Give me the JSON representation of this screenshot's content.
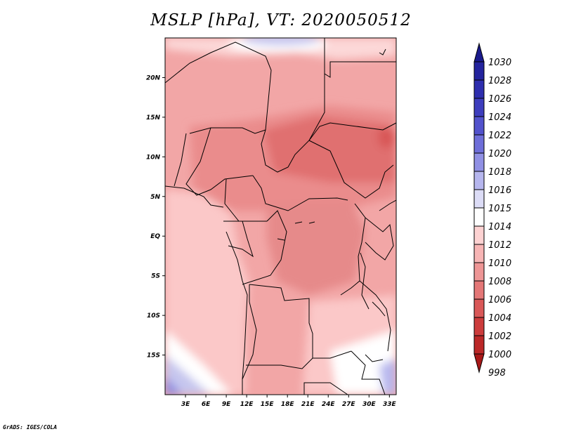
{
  "title": "MSLP [hPa], VT: 2020050512",
  "credit": "GrADS: IGES/COLA",
  "map": {
    "variable": "MSLP",
    "units": "hPa",
    "valid_time": "2020050512",
    "lon_range": [
      0,
      34
    ],
    "lat_range": [
      -20,
      25
    ],
    "x_ticks": [
      {
        "label": "3E",
        "lon": 3
      },
      {
        "label": "6E",
        "lon": 6
      },
      {
        "label": "9E",
        "lon": 9
      },
      {
        "label": "12E",
        "lon": 12
      },
      {
        "label": "15E",
        "lon": 15
      },
      {
        "label": "18E",
        "lon": 18
      },
      {
        "label": "21E",
        "lon": 21
      },
      {
        "label": "24E",
        "lon": 24
      },
      {
        "label": "27E",
        "lon": 27
      },
      {
        "label": "30E",
        "lon": 30
      },
      {
        "label": "33E",
        "lon": 33
      }
    ],
    "y_ticks": [
      {
        "label": "20N",
        "lat": 20
      },
      {
        "label": "15N",
        "lat": 15
      },
      {
        "label": "10N",
        "lat": 10
      },
      {
        "label": "5N",
        "lat": 5
      },
      {
        "label": "EQ",
        "lat": 0
      },
      {
        "label": "5S",
        "lat": -5
      },
      {
        "label": "10S",
        "lat": -10
      },
      {
        "label": "15S",
        "lat": -15
      }
    ]
  },
  "colorbar": {
    "levels": [
      {
        "label": "1030",
        "color": "#1a1a8c"
      },
      {
        "label": "1028",
        "color": "#24249e"
      },
      {
        "label": "1026",
        "color": "#2e2eae"
      },
      {
        "label": "1024",
        "color": "#3d3dbd"
      },
      {
        "label": "1022",
        "color": "#5252cc"
      },
      {
        "label": "1020",
        "color": "#6e6ed9"
      },
      {
        "label": "1018",
        "color": "#9090e4"
      },
      {
        "label": "1016",
        "color": "#b6b6ee"
      },
      {
        "label": "1015",
        "color": "#dcdcf6"
      },
      {
        "label": "1014",
        "color": "#ffffff"
      },
      {
        "label": "1012",
        "color": "#fdd2d2"
      },
      {
        "label": "1010",
        "color": "#f7b5b5"
      },
      {
        "label": "1008",
        "color": "#ee9696"
      },
      {
        "label": "1006",
        "color": "#e47777"
      },
      {
        "label": "1004",
        "color": "#d95858"
      },
      {
        "label": "1002",
        "color": "#cc3c3c"
      },
      {
        "label": "1000",
        "color": "#bb2828"
      },
      {
        "label": "998",
        "color": "#a81818"
      }
    ],
    "top_arrow_color": "#1a1a8c",
    "bottom_arrow_color": "#a81818"
  }
}
